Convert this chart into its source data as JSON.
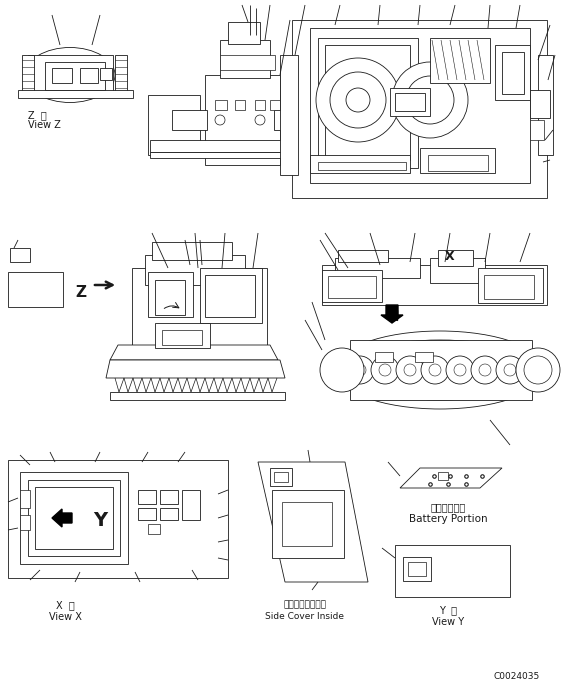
{
  "bg_color": "#ffffff",
  "line_color": "#1a1a1a",
  "figsize": [
    5.61,
    6.81
  ],
  "dpi": 100,
  "labels": {
    "view_z_jp": "Z  視",
    "view_z_en": "View Z",
    "view_x_jp": "X  視",
    "view_x_en": "View X",
    "side_cover_jp": "サイドカバー内側",
    "side_cover_en": "Side Cover Inside",
    "battery_jp": "バッテリー部",
    "battery_en": "Battery Portion",
    "view_y_jp": "Y  視",
    "view_y_en": "View Y",
    "code": "C0024035"
  }
}
